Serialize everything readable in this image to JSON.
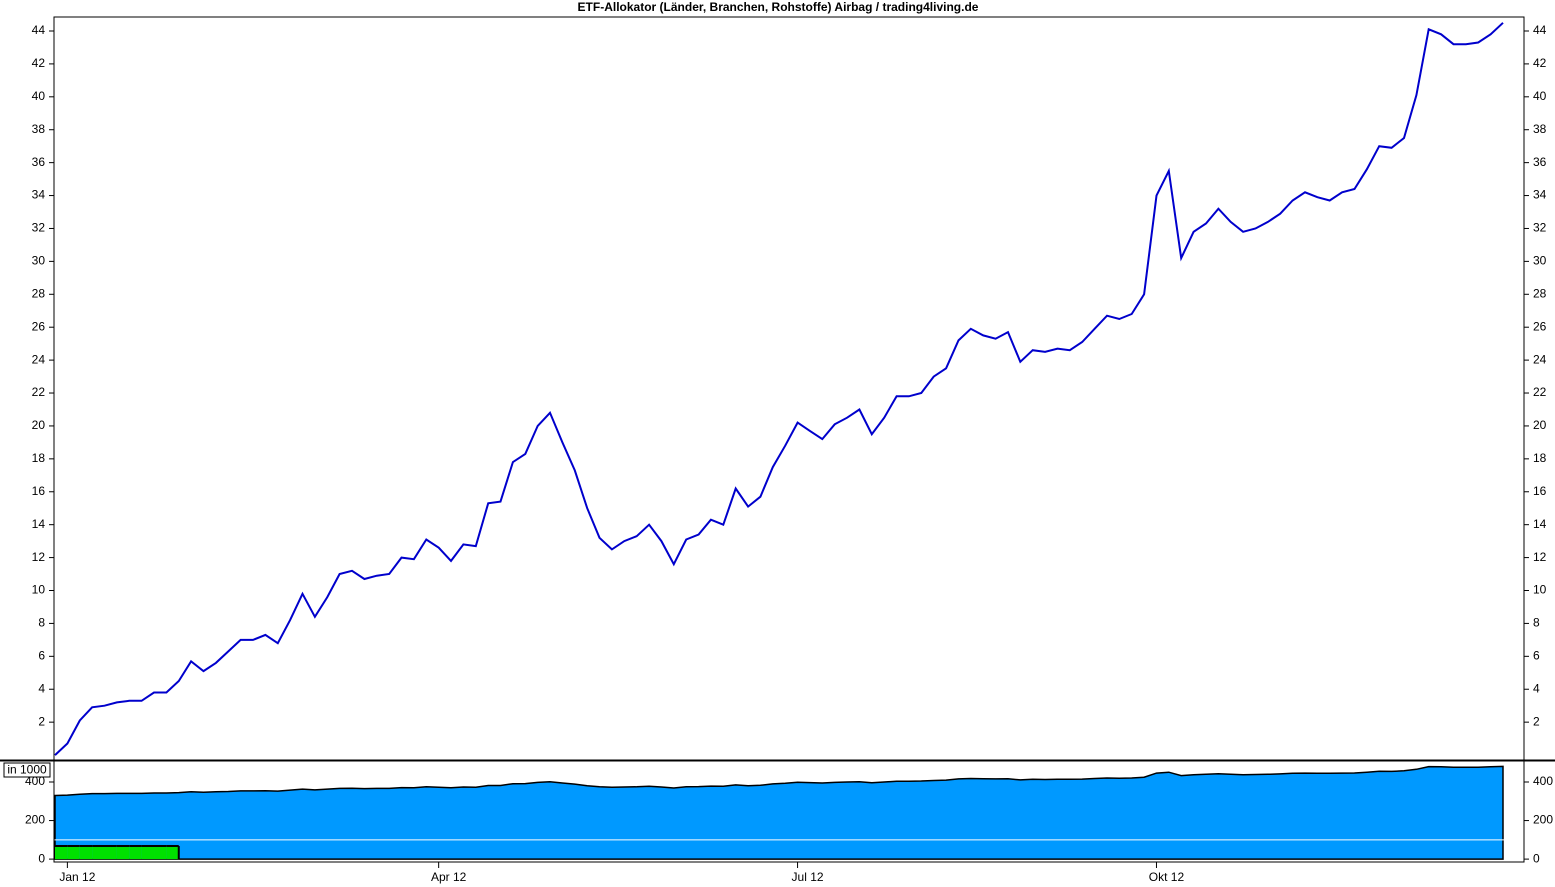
{
  "chart_data": [
    {
      "type": "line",
      "title": "ETF-Allokator (Länder, Branchen, Rohstoffe) Airbag / trading4living.de",
      "ylim": [
        -0.3,
        44.85
      ],
      "yticks": [
        2,
        4,
        6,
        8,
        10,
        12,
        14,
        16,
        18,
        20,
        22,
        24,
        26,
        28,
        30,
        32,
        34,
        36,
        38,
        40,
        42,
        44
      ],
      "series": [
        {
          "color": "#0000cc",
          "values": [
            0,
            0.7,
            2.1,
            2.9,
            3.0,
            3.2,
            3.3,
            3.3,
            3.8,
            3.8,
            4.5,
            5.7,
            5.1,
            5.6,
            6.3,
            7.0,
            7.0,
            7.3,
            6.8,
            8.2,
            9.8,
            8.4,
            9.6,
            11.0,
            11.2,
            10.7,
            10.9,
            11.0,
            12.0,
            11.9,
            13.1,
            12.6,
            11.8,
            12.8,
            12.7,
            15.3,
            15.4,
            17.8,
            18.3,
            20.0,
            20.8,
            19.0,
            17.3,
            15.0,
            13.2,
            12.5,
            13.0,
            13.3,
            14.0,
            13.0,
            11.6,
            13.1,
            13.4,
            14.3,
            14.0,
            16.2,
            15.1,
            15.7,
            17.5,
            18.8,
            20.2,
            19.7,
            19.2,
            20.1,
            20.5,
            21.0,
            19.5,
            20.5,
            21.8,
            21.8,
            22.0,
            23.0,
            23.5,
            25.2,
            25.9,
            25.5,
            25.3,
            25.7,
            23.9,
            24.6,
            24.5,
            24.7,
            24.6,
            25.1,
            25.9,
            26.7,
            26.5,
            26.8,
            28.0,
            34.0,
            35.5,
            30.2,
            31.8,
            32.3,
            33.2,
            32.4,
            31.8,
            32.0,
            32.4,
            32.9,
            33.7,
            34.2,
            33.9,
            33.7,
            34.2,
            34.4,
            35.6,
            37.0,
            36.9,
            37.5,
            40.1,
            44.1,
            43.8,
            43.2,
            43.2,
            43.3,
            43.8,
            44.5
          ]
        }
      ]
    },
    {
      "type": "area",
      "y_label": "in 1000",
      "ylim": [
        -15,
        509
      ],
      "yticks": [
        0,
        200,
        400
      ],
      "reference_line": 100,
      "categories": [
        null,
        "Jan 12",
        null,
        null,
        null,
        null,
        null,
        null,
        null,
        null,
        null,
        null,
        null,
        null,
        null,
        null,
        null,
        null,
        null,
        null,
        null,
        null,
        null,
        null,
        null,
        null,
        null,
        null,
        null,
        null,
        null,
        "Apr 12",
        null,
        null,
        null,
        null,
        null,
        null,
        null,
        null,
        null,
        null,
        null,
        null,
        null,
        null,
        null,
        null,
        null,
        null,
        null,
        null,
        null,
        null,
        null,
        null,
        null,
        null,
        null,
        null,
        "Jul 12",
        null,
        null,
        null,
        null,
        null,
        null,
        null,
        null,
        null,
        null,
        null,
        null,
        null,
        null,
        null,
        null,
        null,
        null,
        null,
        null,
        null,
        null,
        null,
        null,
        null,
        null,
        null,
        null,
        "Okt 12",
        null,
        null,
        null,
        null,
        null,
        null,
        null,
        null,
        null,
        null,
        null,
        null,
        null,
        null,
        null,
        null,
        null,
        null,
        null,
        null,
        null,
        null,
        null,
        null,
        null,
        null,
        null,
        null
      ],
      "series": [
        {
          "color": "#0099ff",
          "values": [
            330,
            332,
            337,
            340,
            340,
            341,
            341,
            341,
            343,
            343,
            345,
            349,
            347,
            349,
            351,
            354,
            354,
            355,
            353,
            358,
            363,
            359,
            363,
            367,
            368,
            366,
            367,
            367,
            371,
            370,
            375,
            373,
            370,
            374,
            373,
            382,
            382,
            391,
            392,
            398,
            401,
            395,
            389,
            381,
            375,
            373,
            374,
            375,
            378,
            374,
            369,
            375,
            376,
            379,
            378,
            385,
            381,
            383,
            390,
            394,
            399,
            397,
            395,
            398,
            400,
            401,
            396,
            400,
            404,
            404,
            405,
            408,
            410,
            416,
            418,
            417,
            416,
            417,
            411,
            414,
            413,
            414,
            414,
            415,
            418,
            421,
            420,
            421,
            425,
            446,
            451,
            433,
            438,
            440,
            443,
            440,
            438,
            439,
            440,
            442,
            445,
            446,
            445,
            445,
            446,
            447,
            451,
            456,
            455,
            458,
            466,
            480,
            479,
            477,
            477,
            477,
            479,
            481
          ]
        },
        {
          "color": "#00e000",
          "values": [
            68,
            68,
            68,
            68,
            68,
            68,
            68,
            68,
            68,
            68,
            null,
            null,
            null,
            null,
            null,
            null,
            null,
            null,
            null,
            null,
            null,
            null,
            null,
            null,
            null,
            null,
            null,
            null,
            null,
            null,
            null,
            null,
            null,
            null,
            null,
            null,
            null,
            null,
            null,
            null,
            null,
            null,
            null,
            null,
            null,
            null,
            null,
            null,
            null,
            null,
            null,
            null,
            null,
            null,
            null,
            null,
            null,
            null,
            null,
            null,
            null,
            null,
            null,
            null,
            null,
            null,
            null,
            null,
            null,
            null,
            null,
            null,
            null,
            null,
            null,
            null,
            null,
            null,
            null,
            null,
            null,
            null,
            null,
            null,
            null,
            null,
            null,
            null,
            null,
            null,
            null,
            null,
            null,
            null,
            null,
            null,
            null,
            null,
            null,
            null,
            null,
            null,
            null,
            null,
            null,
            null,
            null,
            null,
            null,
            null,
            null,
            null,
            null,
            null,
            null,
            null,
            null,
            null
          ]
        }
      ]
    }
  ]
}
